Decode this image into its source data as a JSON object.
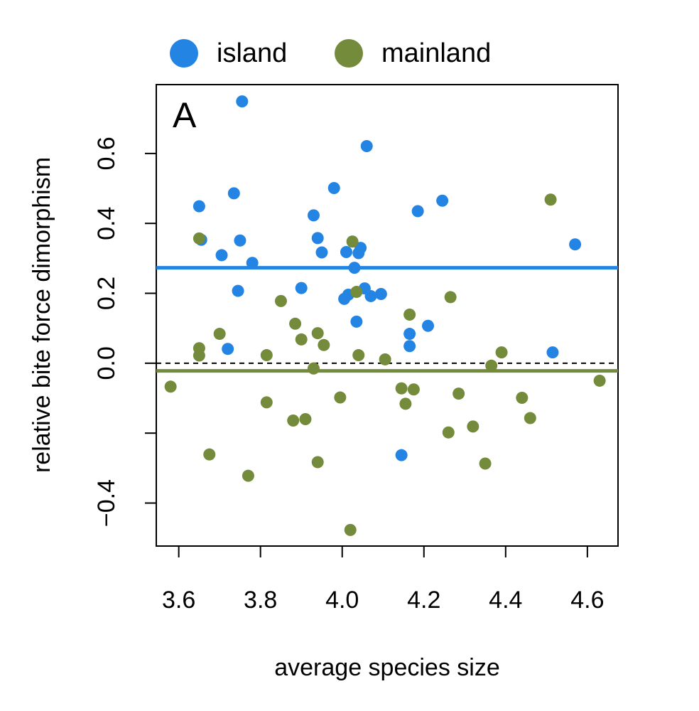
{
  "chart_data": {
    "type": "scatter",
    "title": "",
    "panel_label": "A",
    "xlabel": "average species size",
    "ylabel": "relative bite force dimorphism",
    "xlim": [
      3.545,
      4.675
    ],
    "ylim": [
      -0.523,
      0.797
    ],
    "x_ticks": [
      {
        "value": 3.6,
        "label": "3.6"
      },
      {
        "value": 3.8,
        "label": "3.8"
      },
      {
        "value": 4.0,
        "label": "4.0"
      },
      {
        "value": 4.2,
        "label": "4.2"
      },
      {
        "value": 4.4,
        "label": "4.4"
      },
      {
        "value": 4.6,
        "label": "4.6"
      }
    ],
    "y_ticks": [
      {
        "value": -0.4,
        "label": "−0.4"
      },
      {
        "value": -0.2,
        "label": ""
      },
      {
        "value": 0.0,
        "label": "0.0"
      },
      {
        "value": 0.2,
        "label": "0.2"
      },
      {
        "value": 0.4,
        "label": "0.4"
      },
      {
        "value": 0.6,
        "label": "0.6"
      }
    ],
    "grid": false,
    "legend_position": "top",
    "reference_line": {
      "y": 0.0,
      "style": "dashed",
      "color": "#000000"
    },
    "series": [
      {
        "name": "island",
        "color": "#2484e4",
        "mean_line": 0.273,
        "points": [
          [
            3.755,
            0.749
          ],
          [
            4.06,
            0.621
          ],
          [
            3.98,
            0.501
          ],
          [
            3.735,
            0.486
          ],
          [
            4.245,
            0.465
          ],
          [
            3.65,
            0.449
          ],
          [
            4.185,
            0.435
          ],
          [
            3.93,
            0.423
          ],
          [
            3.94,
            0.358
          ],
          [
            3.655,
            0.353
          ],
          [
            3.75,
            0.351
          ],
          [
            4.57,
            0.34
          ],
          [
            4.045,
            0.33
          ],
          [
            4.01,
            0.318
          ],
          [
            4.04,
            0.315
          ],
          [
            3.95,
            0.317
          ],
          [
            3.705,
            0.309
          ],
          [
            3.78,
            0.287
          ],
          [
            4.03,
            0.273
          ],
          [
            3.9,
            0.215
          ],
          [
            4.055,
            0.214
          ],
          [
            3.745,
            0.207
          ],
          [
            4.095,
            0.198
          ],
          [
            4.07,
            0.192
          ],
          [
            4.015,
            0.196
          ],
          [
            4.005,
            0.184
          ],
          [
            4.035,
            0.119
          ],
          [
            4.21,
            0.107
          ],
          [
            4.165,
            0.084
          ],
          [
            4.165,
            0.049
          ],
          [
            3.72,
            0.041
          ],
          [
            4.515,
            0.031
          ],
          [
            4.145,
            -0.263
          ]
        ]
      },
      {
        "name": "mainland",
        "color": "#738b3a",
        "mean_line": -0.022,
        "points": [
          [
            4.51,
            0.468
          ],
          [
            3.65,
            0.357
          ],
          [
            4.025,
            0.348
          ],
          [
            4.035,
            0.204
          ],
          [
            4.265,
            0.189
          ],
          [
            3.85,
            0.178
          ],
          [
            4.165,
            0.139
          ],
          [
            3.885,
            0.113
          ],
          [
            3.7,
            0.084
          ],
          [
            3.94,
            0.086
          ],
          [
            3.9,
            0.068
          ],
          [
            3.955,
            0.052
          ],
          [
            3.65,
            0.043
          ],
          [
            3.65,
            0.022
          ],
          [
            4.39,
            0.031
          ],
          [
            3.815,
            0.023
          ],
          [
            4.04,
            0.023
          ],
          [
            4.105,
            0.011
          ],
          [
            4.365,
            -0.007
          ],
          [
            3.93,
            -0.015
          ],
          [
            3.58,
            -0.067
          ],
          [
            4.145,
            -0.072
          ],
          [
            4.175,
            -0.075
          ],
          [
            4.285,
            -0.087
          ],
          [
            3.995,
            -0.098
          ],
          [
            4.44,
            -0.099
          ],
          [
            4.63,
            -0.05
          ],
          [
            3.815,
            -0.112
          ],
          [
            4.155,
            -0.116
          ],
          [
            3.88,
            -0.164
          ],
          [
            3.91,
            -0.16
          ],
          [
            4.46,
            -0.157
          ],
          [
            4.32,
            -0.181
          ],
          [
            4.26,
            -0.198
          ],
          [
            3.675,
            -0.261
          ],
          [
            3.94,
            -0.283
          ],
          [
            4.35,
            -0.287
          ],
          [
            3.77,
            -0.322
          ],
          [
            4.02,
            -0.477
          ]
        ]
      }
    ]
  }
}
